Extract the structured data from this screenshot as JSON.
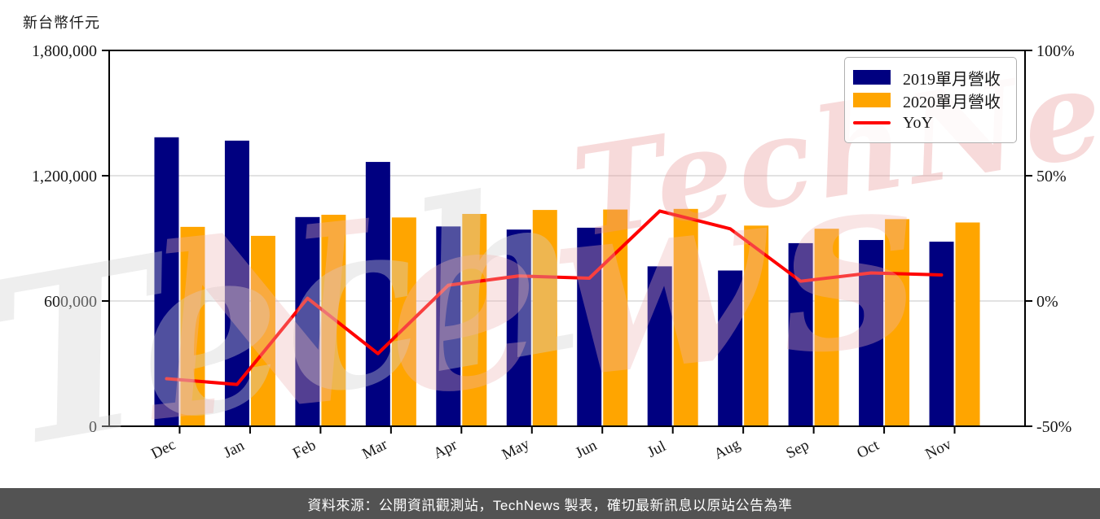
{
  "chart_data": {
    "type": "bar",
    "subtype": "grouped-bars-with-line-overlay",
    "title": "",
    "unit_label": "新台幣仟元",
    "categories": [
      "Dec",
      "Jan",
      "Feb",
      "Mar",
      "Apr",
      "May",
      "Jun",
      "Jul",
      "Aug",
      "Sep",
      "Oct",
      "Nov"
    ],
    "series": [
      {
        "name": "2019單月營收",
        "axis": "left",
        "color": "#000080",
        "values": [
          1384000,
          1368000,
          1002000,
          1266000,
          957000,
          942000,
          951000,
          766000,
          746000,
          877000,
          892000,
          884000
        ]
      },
      {
        "name": "2020單月營收",
        "axis": "left",
        "color": "#FFA500",
        "values": [
          955000,
          912000,
          1013000,
          1000000,
          1017000,
          1036000,
          1038000,
          1041000,
          961000,
          946000,
          992000,
          976000
        ]
      }
    ],
    "line_series": {
      "name": "YoY",
      "axis": "right",
      "unit": "%",
      "color": "#FF0000",
      "values": [
        -31.0,
        -33.3,
        1.1,
        -21.0,
        6.3,
        10.0,
        9.1,
        35.9,
        28.8,
        7.9,
        11.2,
        10.4
      ]
    },
    "left_axis": {
      "min": 0,
      "max": 1800000,
      "ticks": [
        {
          "value": 0,
          "label": "0",
          "grid": false
        },
        {
          "value": 600000,
          "label": "600,000",
          "grid": true
        },
        {
          "value": 1200000,
          "label": "1,200,000",
          "grid": true
        },
        {
          "value": 1800000,
          "label": "1,800,000",
          "grid": false
        }
      ]
    },
    "right_axis": {
      "min": -50,
      "max": 100,
      "ticks": [
        {
          "value": -50,
          "label": "-50%"
        },
        {
          "value": 0,
          "label": "0%"
        },
        {
          "value": 50,
          "label": "50%"
        },
        {
          "value": 100,
          "label": "100%"
        }
      ]
    },
    "colors": {
      "grid": "#D9D9D9",
      "axis": "#000000"
    },
    "grid": "horizontal-only",
    "legend_position": "top-right"
  },
  "legend": {
    "items": [
      {
        "label": "2019單月營收",
        "swatch": "navy-rect"
      },
      {
        "label": "2020單月營收",
        "swatch": "orange-rect"
      },
      {
        "label": "YoY",
        "swatch": "red-line"
      }
    ]
  },
  "watermarks": [
    {
      "text": "Tech"
    },
    {
      "text": "News"
    },
    {
      "text": "TechNews"
    }
  ],
  "footer": {
    "text": "資料來源：公開資訊觀測站，TechNews 製表，確切最新訊息以原站公告為準"
  }
}
